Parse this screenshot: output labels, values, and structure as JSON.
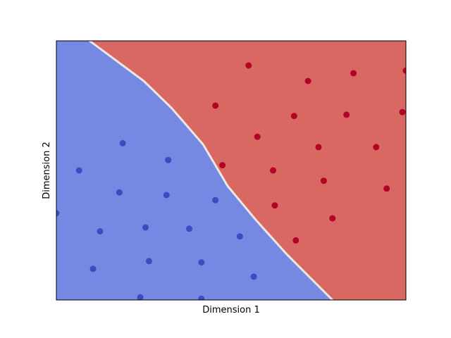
{
  "chart_data": {
    "type": "scatter",
    "title": "",
    "xlabel": "Dimension 1",
    "ylabel": "Dimension 2",
    "xlim": [
      0,
      100
    ],
    "ylim": [
      0,
      100
    ],
    "xticks": [],
    "yticks": [],
    "grid": false,
    "legend": "none",
    "background": {
      "type": "decision-regions",
      "boundary": [
        [
          9.5,
          100
        ],
        [
          15.5,
          94
        ],
        [
          25,
          84.5
        ],
        [
          33,
          74
        ],
        [
          42,
          60
        ],
        [
          49,
          44
        ],
        [
          57,
          31
        ],
        [
          66,
          17.5
        ],
        [
          79,
          0
        ]
      ],
      "region_left_color": "#7589e2",
      "region_right_color": "#d96762",
      "boundary_color": "#ece7e2"
    },
    "series": [
      {
        "color": "#3b4cc0",
        "points": [
          [
            0,
            33.5
          ],
          [
            6.5,
            50
          ],
          [
            19,
            60.5
          ],
          [
            32,
            54
          ],
          [
            18,
            41.5
          ],
          [
            31.5,
            40.5
          ],
          [
            45.5,
            38.5
          ],
          [
            25.5,
            28
          ],
          [
            38,
            27.5
          ],
          [
            12.5,
            26.5
          ],
          [
            52.5,
            24.5
          ],
          [
            10.5,
            12
          ],
          [
            26.5,
            15
          ],
          [
            41.5,
            14.5
          ],
          [
            56.5,
            9
          ],
          [
            24,
            1
          ],
          [
            41.5,
            0.5
          ]
        ]
      },
      {
        "color": "#b40426",
        "points": [
          [
            55,
            90.5
          ],
          [
            85,
            87.5
          ],
          [
            72,
            84.5
          ],
          [
            100,
            88.5
          ],
          [
            45.5,
            75
          ],
          [
            68,
            71
          ],
          [
            83,
            71.5
          ],
          [
            99,
            72.5
          ],
          [
            57.5,
            63
          ],
          [
            75,
            59
          ],
          [
            91.5,
            59
          ],
          [
            47.5,
            52
          ],
          [
            62,
            50
          ],
          [
            76.5,
            46
          ],
          [
            94.5,
            43
          ],
          [
            62.5,
            36.5
          ],
          [
            79,
            31.5
          ],
          [
            68.5,
            23
          ]
        ]
      }
    ]
  }
}
